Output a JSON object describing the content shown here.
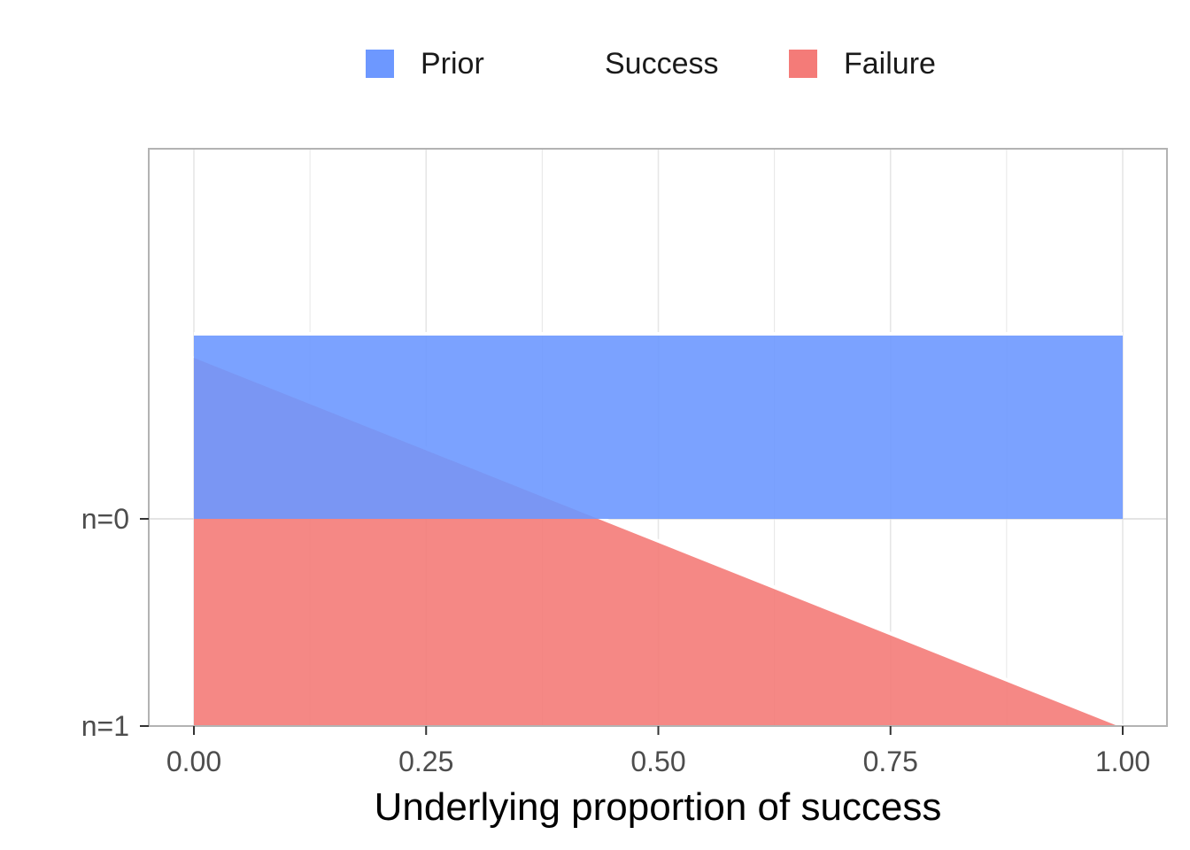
{
  "legend": {
    "items": [
      {
        "label": "Prior",
        "color": "#6D98FF"
      },
      {
        "label": "Success",
        "color": null
      },
      {
        "label": "Failure",
        "color": "#F47B78"
      }
    ]
  },
  "chart_data": {
    "type": "area",
    "xlabel": "Underlying proportion of success",
    "ylabel": "",
    "xlim": [
      0,
      1
    ],
    "x_ticks": [
      "0.00",
      "0.25",
      "0.50",
      "0.75",
      "1.00"
    ],
    "y_categories": [
      "n=0",
      "n=1"
    ],
    "grid": true,
    "legend_position": "top",
    "series": [
      {
        "name": "Prior",
        "baseline": "n=0",
        "color": "#6D98FF",
        "x": [
          0,
          1
        ],
        "density": [
          1,
          1
        ]
      },
      {
        "name": "Failure",
        "baseline": "n=1",
        "color": "#F47B78",
        "x": [
          0,
          1
        ],
        "density": [
          2,
          0
        ]
      }
    ]
  }
}
